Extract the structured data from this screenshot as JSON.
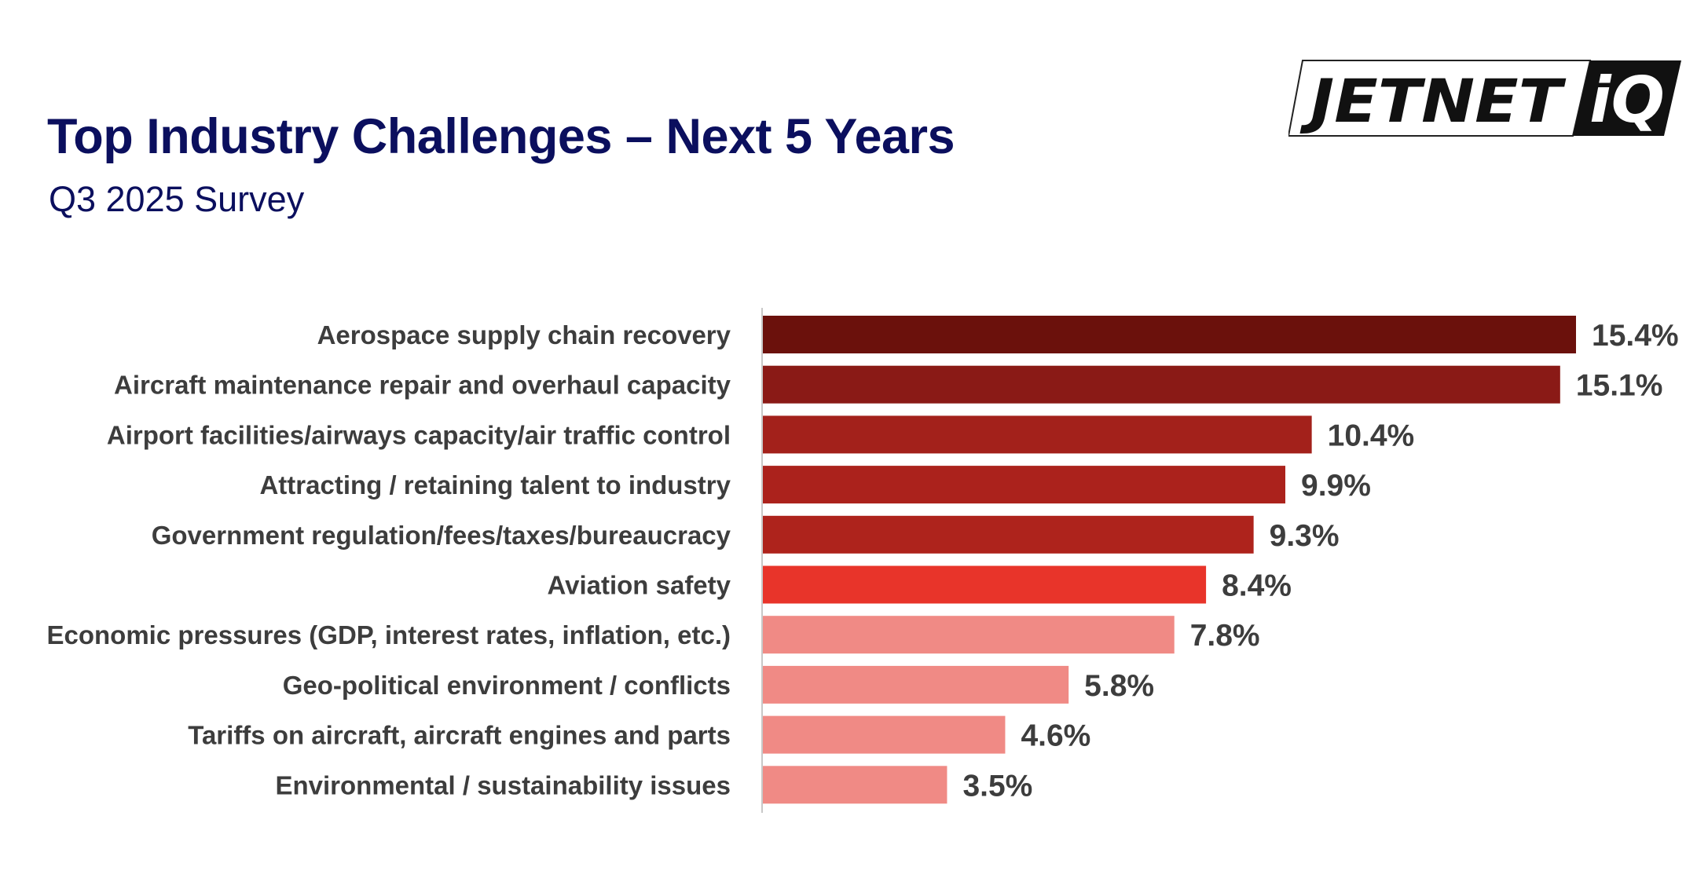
{
  "header": {
    "title": "Top Industry Challenges – Next 5 Years",
    "subtitle": "Q3 2025 Survey"
  },
  "logo": {
    "text_main": "JETNET",
    "text_badge": "iQ"
  },
  "colors": {
    "title": "#0b0f5e",
    "label": "#3d3d3d",
    "axis": "#c8c8c8"
  },
  "chart_data": {
    "type": "bar",
    "orientation": "horizontal",
    "title": "Top Industry Challenges – Next 5 Years",
    "subtitle": "Q3 2025 Survey",
    "xlabel": "",
    "ylabel": "",
    "xlim": [
      0,
      15.4
    ],
    "grid": false,
    "legend": "none",
    "value_suffix": "%",
    "categories": [
      "Aerospace supply chain recovery",
      "Aircraft maintenance repair and overhaul capacity",
      "Airport facilities/airways capacity/air traffic control",
      "Attracting / retaining talent to industry",
      "Government regulation/fees/taxes/bureaucracy",
      "Aviation safety",
      "Economic pressures (GDP, interest rates, inflation, etc.)",
      "Geo-political environment / conflicts",
      "Tariffs on aircraft, aircraft engines and parts",
      "Environmental / sustainability issues"
    ],
    "values": [
      15.4,
      15.1,
      10.4,
      9.9,
      9.3,
      8.4,
      7.8,
      5.8,
      4.6,
      3.5
    ],
    "value_labels": [
      "15.4%",
      "15.1%",
      "10.4%",
      "9.9%",
      "9.3%",
      "8.4%",
      "7.8%",
      "5.8%",
      "4.6%",
      "3.5%"
    ],
    "bar_colors": [
      "#6b110c",
      "#8a1a16",
      "#a3211b",
      "#ab221c",
      "#ae231c",
      "#e8342a",
      "#f08a85",
      "#f08a85",
      "#f08a85",
      "#f08a85"
    ]
  }
}
